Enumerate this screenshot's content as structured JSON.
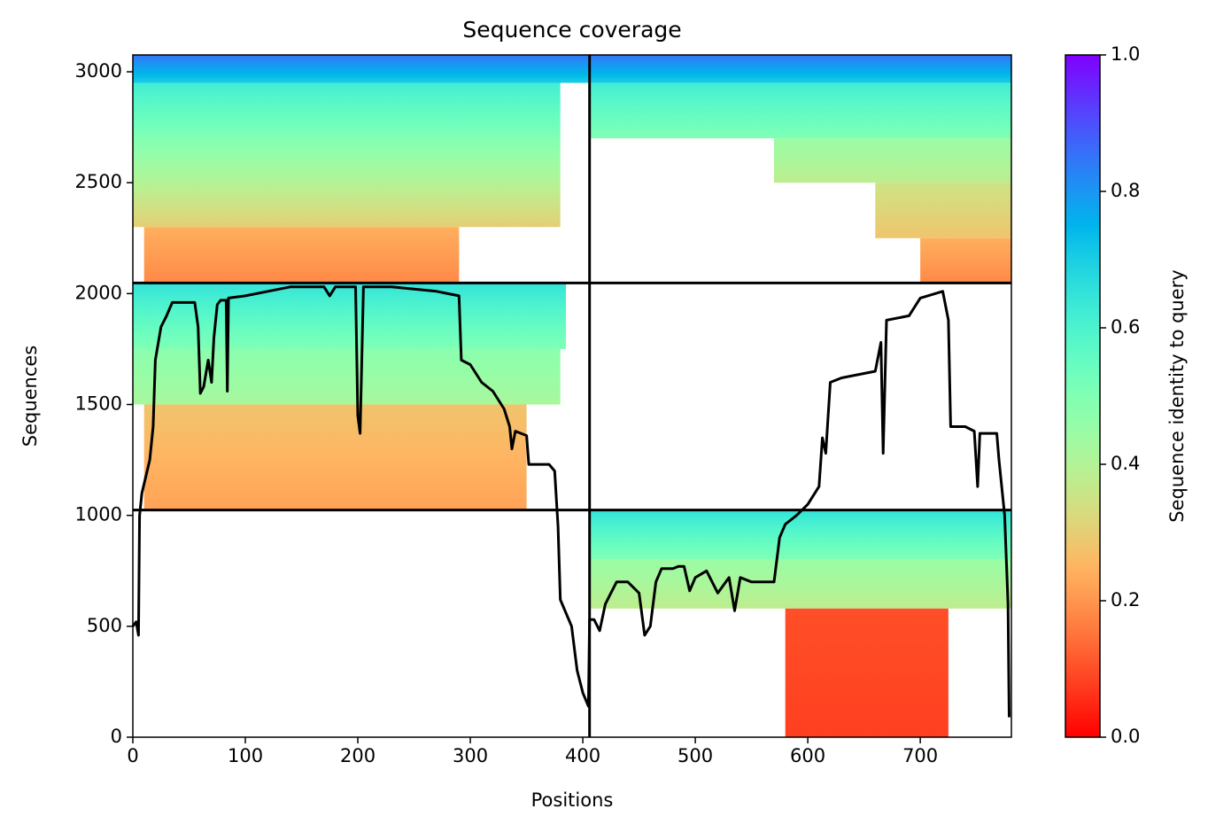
{
  "chart_data": {
    "type": "coverage",
    "title": "Sequence coverage",
    "xlabel": "Positions",
    "ylabel": "Sequences",
    "xlim": [
      0,
      781
    ],
    "xticks": [
      0,
      100,
      200,
      300,
      400,
      500,
      600,
      700
    ],
    "ylim": [
      0,
      3076
    ],
    "yticks": [
      0,
      500,
      1000,
      1500,
      2000,
      2500,
      3000
    ],
    "colormap": "rainbow_r",
    "colorbar": {
      "label": "Sequence identity to query",
      "lim": [
        0,
        1
      ],
      "ticks": [
        {
          "value": 0,
          "label": "0.0"
        },
        {
          "value": 0.2,
          "label": "0.2"
        },
        {
          "value": 0.4,
          "label": "0.4"
        },
        {
          "value": 0.6,
          "label": "0.6"
        },
        {
          "value": 0.8,
          "label": "0.8"
        },
        {
          "value": 1,
          "label": "1.0"
        }
      ]
    },
    "blocks": [
      {
        "x": [
          10,
          290
        ],
        "y": [
          2048,
          2300
        ],
        "identity": [
          0.18,
          0.24
        ]
      },
      {
        "x": [
          0,
          380
        ],
        "y": [
          2300,
          2950
        ],
        "identity": [
          0.3,
          0.62
        ]
      },
      {
        "x": [
          0,
          406
        ],
        "y": [
          2950,
          3076
        ],
        "identity": [
          0.7,
          0.85
        ]
      },
      {
        "x": [
          406,
          781
        ],
        "y": [
          2950,
          3076
        ],
        "identity": [
          0.7,
          0.85
        ]
      },
      {
        "x": [
          406,
          781
        ],
        "y": [
          2700,
          2950
        ],
        "identity": [
          0.5,
          0.62
        ]
      },
      {
        "x": [
          570,
          781
        ],
        "y": [
          2500,
          2700
        ],
        "identity": [
          0.38,
          0.45
        ]
      },
      {
        "x": [
          660,
          781
        ],
        "y": [
          2250,
          2500
        ],
        "identity": [
          0.28,
          0.35
        ]
      },
      {
        "x": [
          700,
          781
        ],
        "y": [
          2048,
          2250
        ],
        "identity": [
          0.18,
          0.24
        ]
      },
      {
        "x": [
          0,
          385
        ],
        "y": [
          1750,
          2048
        ],
        "identity": [
          0.5,
          0.65
        ]
      },
      {
        "x": [
          0,
          380
        ],
        "y": [
          1500,
          1750
        ],
        "identity": [
          0.42,
          0.48
        ]
      },
      {
        "x": [
          10,
          350
        ],
        "y": [
          1024,
          1500
        ],
        "identity": [
          0.22,
          0.28
        ]
      },
      {
        "x": [
          406,
          781
        ],
        "y": [
          800,
          1024
        ],
        "identity": [
          0.5,
          0.65
        ]
      },
      {
        "x": [
          406,
          781
        ],
        "y": [
          580,
          800
        ],
        "identity": [
          0.38,
          0.45
        ]
      },
      {
        "x": [
          580,
          725
        ],
        "y": [
          0,
          580
        ],
        "identity": [
          0.08,
          0.1
        ]
      }
    ],
    "hlines": [
      1024,
      2048
    ],
    "vlines": [
      406
    ],
    "coverage": {
      "color": "#000000",
      "x": [
        0,
        3,
        5,
        6,
        8,
        15,
        18,
        20,
        25,
        30,
        35,
        55,
        58,
        60,
        63,
        67,
        70,
        72,
        75,
        78,
        83,
        84,
        85,
        100,
        120,
        140,
        170,
        175,
        180,
        198,
        200,
        202,
        205,
        230,
        250,
        270,
        290,
        292,
        300,
        310,
        320,
        330,
        335,
        337,
        340,
        350,
        352,
        370,
        375,
        378,
        380,
        390,
        395,
        400,
        405,
        406,
        410,
        415,
        420,
        425,
        430,
        440,
        450,
        455,
        460,
        465,
        470,
        480,
        485,
        490,
        495,
        500,
        510,
        520,
        530,
        535,
        540,
        550,
        560,
        570,
        575,
        580,
        590,
        600,
        610,
        613,
        616,
        620,
        630,
        650,
        660,
        665,
        667,
        670,
        690,
        700,
        720,
        725,
        727,
        740,
        748,
        751,
        753,
        768,
        770,
        775,
        778,
        779
      ],
      "values": [
        500,
        520,
        460,
        1000,
        1100,
        1250,
        1400,
        1700,
        1850,
        1900,
        1960,
        1960,
        1850,
        1550,
        1580,
        1700,
        1600,
        1800,
        1950,
        1970,
        1970,
        1560,
        1980,
        1990,
        2010,
        2030,
        2030,
        1990,
        2030,
        2030,
        1450,
        1370,
        2030,
        2030,
        2020,
        2010,
        1990,
        1700,
        1680,
        1600,
        1560,
        1480,
        1400,
        1300,
        1380,
        1360,
        1230,
        1230,
        1200,
        950,
        620,
        500,
        300,
        200,
        140,
        530,
        530,
        480,
        600,
        650,
        700,
        700,
        650,
        460,
        500,
        700,
        760,
        760,
        770,
        770,
        660,
        720,
        750,
        650,
        720,
        570,
        720,
        700,
        700,
        700,
        900,
        960,
        1000,
        1050,
        1130,
        1350,
        1280,
        1600,
        1620,
        1640,
        1650,
        1780,
        1280,
        1880,
        1900,
        1980,
        2010,
        1880,
        1400,
        1400,
        1380,
        1130,
        1370,
        1370,
        1250,
        1000,
        600,
        90
      ]
    }
  }
}
